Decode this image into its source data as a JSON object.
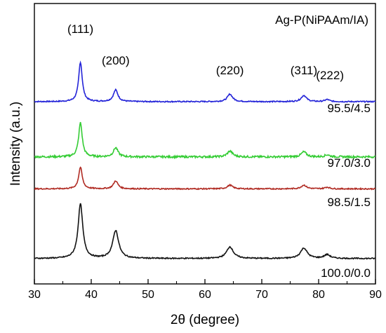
{
  "chart_data": {
    "type": "line",
    "title": "Ag-P(NiPAAm/IA)",
    "xlabel": "2θ (degree)",
    "ylabel": "Intensity (a.u.)",
    "xlim": [
      30,
      90
    ],
    "xticks": [
      30,
      40,
      50,
      60,
      70,
      80,
      90
    ],
    "grid": false,
    "peaks": [
      {
        "label": "(111)",
        "x": 38.1
      },
      {
        "label": "(200)",
        "x": 44.3
      },
      {
        "label": "(220)",
        "x": 64.4
      },
      {
        "label": "(311)",
        "x": 77.4
      },
      {
        "label": "(222)",
        "x": 81.5
      }
    ],
    "series": [
      {
        "name": "95.5/4.5",
        "color": "#2323d8",
        "baseline": 0.945,
        "peak_heights": [
          0.95,
          0.28,
          0.18,
          0.15,
          0.05
        ],
        "noise": 0.012
      },
      {
        "name": "97.0/3.0",
        "color": "#33cc33",
        "baseline": 0.58,
        "peak_heights": [
          0.82,
          0.22,
          0.14,
          0.12,
          0.05
        ],
        "noise": 0.02
      },
      {
        "name": "98.5/1.5",
        "color": "#b02a22",
        "baseline": 0.275,
        "peak_heights": [
          0.52,
          0.19,
          0.09,
          0.09,
          0.04
        ],
        "noise": 0.012
      },
      {
        "name": "100.0/0.0",
        "color": "#111111",
        "baseline": -0.835,
        "peak_heights": [
          1.31,
          0.67,
          0.28,
          0.25,
          0.09
        ],
        "noise": 0.012
      }
    ]
  }
}
